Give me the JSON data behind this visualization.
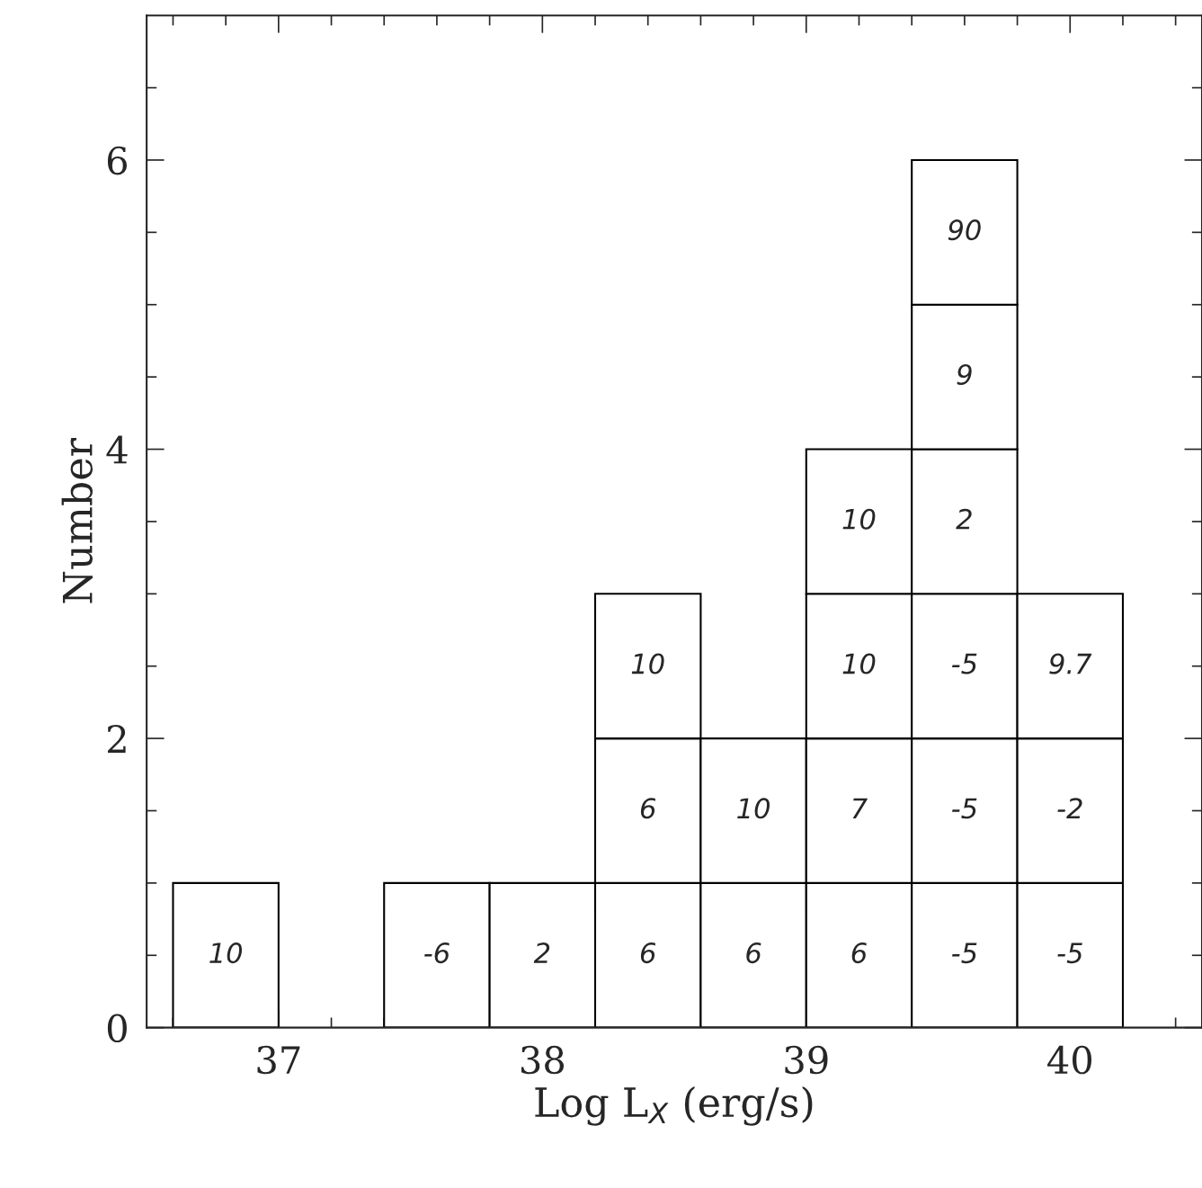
{
  "chart_data": {
    "type": "bar",
    "stacked": true,
    "xlabel": "Log L$_{X}$ (erg/s)",
    "ylabel": "Number",
    "x": [
      36.8,
      37.2,
      37.6,
      38.0,
      38.4,
      38.8,
      39.2,
      39.6,
      40.0
    ],
    "series": [
      {
        "color": "#ffffff",
        "values": [
          1,
          null,
          1,
          1,
          1,
          1,
          1,
          1,
          1
        ]
      },
      {
        "color": "#ffffff",
        "values": [
          null,
          null,
          null,
          null,
          1,
          1,
          1,
          1,
          1
        ]
      },
      {
        "color": "#ffffff",
        "values": [
          null,
          null,
          null,
          null,
          1,
          null,
          1,
          1,
          1
        ]
      },
      {
        "color": "#ffffff",
        "values": [
          null,
          null,
          null,
          null,
          null,
          null,
          1,
          1,
          null
        ]
      },
      {
        "color": "#ffffff",
        "values": [
          null,
          null,
          null,
          null,
          null,
          null,
          null,
          1,
          null
        ]
      },
      {
        "color": "#ffffff",
        "values": [
          null,
          null,
          null,
          null,
          null,
          null,
          null,
          1,
          null
        ]
      }
    ],
    "annotations": [
      "10",
      "-6",
      "2",
      "6",
      "6",
      "10",
      "6",
      "10",
      "6",
      "7",
      "10",
      "10",
      "-5",
      "-5",
      "-5",
      "2",
      "9",
      "90",
      "-5",
      "-2",
      "9.7"
    ],
    "xlim": [
      36.5,
      40.5
    ],
    "ylim": [
      0,
      7
    ],
    "xticks": [
      {
        "value": 36.6,
        "label": null
      },
      {
        "value": 36.8,
        "label": null
      },
      37,
      {
        "value": 37.2,
        "label": null
      },
      {
        "value": 37.4,
        "label": null
      },
      {
        "value": 37.6,
        "label": null
      },
      {
        "value": 37.8,
        "label": null
      },
      38,
      {
        "value": 38.2,
        "label": null
      },
      {
        "value": 38.4,
        "label": null
      },
      {
        "value": 38.6,
        "label": null
      },
      {
        "value": 38.8,
        "label": null
      },
      39,
      {
        "value": 39.2,
        "label": null
      },
      {
        "value": 39.4,
        "label": null
      },
      {
        "value": 39.6,
        "label": null
      },
      {
        "value": 39.8,
        "label": null
      },
      40,
      {
        "value": 40.2,
        "label": null
      },
      {
        "value": 40.4,
        "label": null
      }
    ],
    "yticks": [
      0,
      {
        "value": 0.5,
        "label": null
      },
      {
        "value": 1,
        "label": null
      },
      {
        "value": 1.5,
        "label": null
      },
      2,
      {
        "value": 2.5,
        "label": null
      },
      {
        "value": 3,
        "label": null
      },
      {
        "value": 3.5,
        "label": null
      },
      4,
      {
        "value": 4.5,
        "label": null
      },
      {
        "value": 5,
        "label": null
      },
      {
        "value": 5.5,
        "label": null
      },
      6,
      {
        "value": 6.5,
        "label": null
      }
    ]
  }
}
